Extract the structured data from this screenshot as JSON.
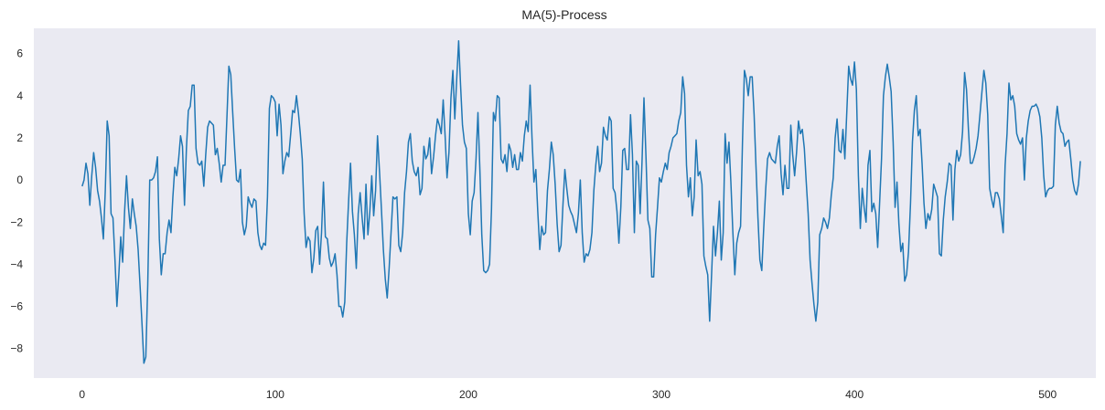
{
  "chart_data": {
    "type": "line",
    "title": "MA(5)-Process",
    "xlabel": "",
    "ylabel": "",
    "xlim": [
      -25,
      525
    ],
    "ylim": [
      -9.4,
      7.2
    ],
    "xticks": [
      0,
      100,
      200,
      300,
      400,
      500
    ],
    "yticks": [
      -8,
      -6,
      -4,
      -2,
      0,
      2,
      4,
      6
    ],
    "grid": false,
    "legend": null,
    "background_color": "#eaeaf2",
    "series": [
      {
        "name": "MA(5)",
        "color": "#1f77b4",
        "x_start": 0,
        "values": [
          -0.3,
          0.0,
          0.8,
          0.3,
          -1.2,
          0.2,
          1.3,
          0.6,
          -0.5,
          -1.0,
          -1.8,
          -2.8,
          -0.5,
          2.8,
          2.1,
          -1.6,
          -1.8,
          -3.8,
          -6.0,
          -4.5,
          -2.7,
          -3.9,
          -1.5,
          0.2,
          -1.3,
          -2.3,
          -0.9,
          -1.6,
          -2.2,
          -3.3,
          -5.0,
          -6.8,
          -8.7,
          -8.4,
          -5.0,
          0.0,
          0.0,
          0.1,
          0.4,
          1.1,
          -2.8,
          -4.5,
          -3.5,
          -3.5,
          -2.5,
          -1.9,
          -2.5,
          -0.8,
          0.6,
          0.2,
          1.0,
          2.1,
          1.6,
          -1.2,
          1.5,
          3.3,
          3.5,
          4.5,
          4.5,
          1.5,
          0.8,
          0.7,
          0.9,
          -0.3,
          1.2,
          2.5,
          2.8,
          2.7,
          2.6,
          1.2,
          1.5,
          0.8,
          -0.1,
          0.7,
          0.7,
          3.0,
          5.4,
          5.0,
          3.2,
          1.5,
          0.0,
          -0.1,
          0.5,
          -2.0,
          -2.6,
          -2.2,
          -0.8,
          -1.1,
          -1.3,
          -0.9,
          -1.0,
          -2.5,
          -3.1,
          -3.3,
          -3.0,
          -3.1,
          -0.8,
          3.4,
          4.0,
          3.9,
          3.7,
          2.1,
          3.6,
          2.6,
          0.3,
          0.9,
          1.3,
          1.1,
          2.2,
          3.3,
          3.2,
          4.0,
          3.2,
          2.2,
          1.0,
          -1.6,
          -3.2,
          -2.7,
          -2.9,
          -4.4,
          -3.7,
          -2.4,
          -2.2,
          -4.0,
          -2.5,
          -0.1,
          -2.7,
          -2.8,
          -3.7,
          -4.1,
          -3.9,
          -3.5,
          -4.5,
          -6.0,
          -6.0,
          -6.5,
          -5.8,
          -3.0,
          -1.0,
          0.8,
          -1.5,
          -2.6,
          -4.2,
          -1.6,
          -0.6,
          -1.8,
          -2.8,
          -0.2,
          -2.6,
          -1.5,
          0.2,
          -1.7,
          -0.5,
          2.1,
          0.4,
          -1.4,
          -3.3,
          -4.7,
          -5.6,
          -4.2,
          -2.5,
          -0.8,
          -0.9,
          -0.8,
          -3.1,
          -3.4,
          -2.5,
          -0.6,
          0.4,
          1.8,
          2.2,
          0.9,
          0.4,
          0.2,
          0.6,
          -0.7,
          -0.4,
          1.6,
          1.0,
          1.2,
          2.0,
          0.3,
          1.1,
          2.1,
          2.9,
          2.6,
          2.2,
          3.8,
          2.1,
          0.1,
          1.3,
          3.9,
          5.2,
          2.9,
          4.8,
          6.6,
          4.5,
          2.6,
          1.8,
          1.5,
          -1.6,
          -2.6,
          -1.0,
          -0.6,
          1.0,
          3.2,
          0.5,
          -2.6,
          -4.3,
          -4.4,
          -4.3,
          -4.0,
          -1.4,
          3.2,
          2.8,
          4.0,
          3.9,
          1.0,
          0.8,
          1.2,
          0.4,
          1.7,
          1.4,
          0.6,
          1.2,
          0.5,
          0.5,
          1.3,
          0.9,
          2.1,
          2.8,
          2.3,
          4.5,
          2.0,
          -0.1,
          0.5,
          -1.5,
          -3.3,
          -2.2,
          -2.6,
          -2.5,
          -0.5,
          0.5,
          1.8,
          1.2,
          -0.2,
          -2.1,
          -3.4,
          -3.1,
          -1.2,
          0.5,
          -0.4,
          -1.2,
          -1.5,
          -1.7,
          -2.1,
          -2.5,
          -1.6,
          0.0,
          -2.5,
          -3.9,
          -3.5,
          -3.6,
          -3.3,
          -2.5,
          -0.5,
          0.7,
          1.6,
          0.4,
          0.8,
          2.5,
          2.1,
          1.9,
          3.0,
          2.8,
          -0.4,
          -0.6,
          -1.5,
          -3.0,
          -1.3,
          1.4,
          1.5,
          0.5,
          0.5,
          3.1,
          1.2,
          -2.5,
          0.9,
          0.7,
          -1.6,
          0.9,
          3.9,
          1.1,
          -1.9,
          -2.3,
          -4.6,
          -4.6,
          -2.6,
          -1.3,
          0.1,
          -0.1,
          0.4,
          0.8,
          0.5,
          1.3,
          1.6,
          2.0,
          2.1,
          2.2,
          2.8,
          3.2,
          4.9,
          4.1,
          0.7,
          -0.8,
          0.1,
          -1.7,
          -0.8,
          1.9,
          0.2,
          0.4,
          -0.2,
          -3.6,
          -4.1,
          -4.5,
          -6.7,
          -4.5,
          -2.2,
          -3.6,
          -2.5,
          -1.0,
          -3.8,
          -2.5,
          2.2,
          0.8,
          1.8,
          -0.1,
          -2.4,
          -4.5,
          -3.0,
          -2.5,
          -2.2,
          1.8,
          5.2,
          4.8,
          4.0,
          4.9,
          4.9,
          3.1,
          0.6,
          -1.8,
          -3.8,
          -4.3,
          -2.3,
          -0.5,
          1.0,
          1.3,
          1.0,
          0.9,
          0.8,
          1.6,
          2.1,
          0.3,
          -0.7,
          0.7,
          -0.4,
          -0.4,
          2.6,
          1.2,
          0.2,
          1.3,
          2.8,
          2.2,
          2.4,
          1.5,
          -0.1,
          -1.6,
          -3.8,
          -4.9,
          -5.9,
          -6.7,
          -5.8,
          -2.6,
          -2.3,
          -1.8,
          -2.0,
          -2.3,
          -1.8,
          -0.7,
          0.1,
          2.0,
          2.9,
          1.4,
          1.3,
          2.4,
          1.0,
          3.2,
          5.4,
          4.8,
          4.5,
          5.6,
          4.3,
          0.2,
          -2.3,
          -0.4,
          -1.3,
          -2.0,
          0.7,
          1.4,
          -1.5,
          -1.1,
          -1.6,
          -3.2,
          -1.1,
          1.0,
          4.0,
          4.9,
          5.5,
          4.9,
          4.2,
          1.8,
          -1.3,
          -0.1,
          -2.1,
          -3.4,
          -3.0,
          -4.8,
          -4.5,
          -3.4,
          -1.1,
          1.8,
          3.3,
          4.0,
          2.1,
          2.4,
          0.8,
          -1.1,
          -2.3,
          -1.6,
          -1.9,
          -1.4,
          -0.2,
          -0.5,
          -0.8,
          -3.5,
          -3.6,
          -1.9,
          -0.8,
          -0.1,
          0.8,
          0.7,
          -1.9,
          0.5,
          1.4,
          0.9,
          1.2,
          2.3,
          5.1,
          4.3,
          2.4,
          0.8,
          0.8,
          1.1,
          1.5,
          2.1,
          3.1,
          4.2,
          5.2,
          4.6,
          3.1,
          -0.4,
          -0.9,
          -1.3,
          -0.6,
          -0.6,
          -0.9,
          -1.7,
          -2.5,
          0.7,
          2.2,
          4.6,
          3.8,
          4.0,
          3.5,
          2.2,
          1.9,
          1.7,
          2.0,
          0.0,
          2.0,
          2.8,
          3.3,
          3.5,
          3.5,
          3.6,
          3.4,
          3.0,
          2.0,
          0.2,
          -0.8,
          -0.5,
          -0.4,
          -0.4,
          -0.3,
          2.6,
          3.5,
          2.7,
          2.3,
          2.2,
          1.6,
          1.8,
          1.9,
          1.0,
          0.0,
          -0.5,
          -0.7,
          -0.2,
          0.9
        ]
      }
    ]
  }
}
